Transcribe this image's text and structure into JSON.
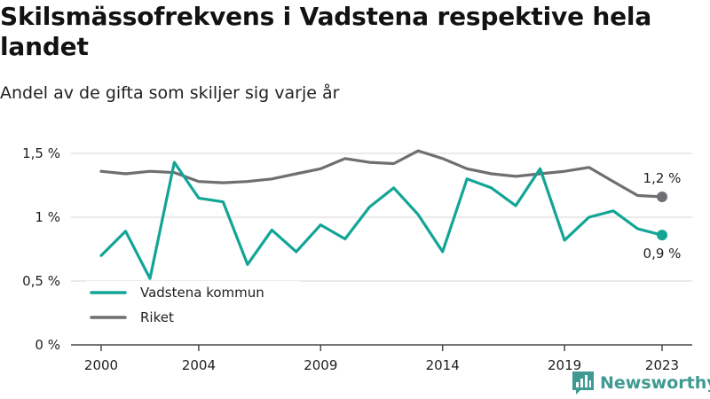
{
  "chart_data": {
    "type": "line",
    "title": "Skilsmässofrekvens i Vadstena respektive hela landet",
    "subtitle": "Andel av de gifta som skiljer sig varje år",
    "x": [
      2000,
      2001,
      2002,
      2003,
      2004,
      2005,
      2006,
      2007,
      2008,
      2009,
      2010,
      2011,
      2012,
      2013,
      2014,
      2015,
      2016,
      2017,
      2018,
      2019,
      2020,
      2021,
      2022,
      2023
    ],
    "x_tick_values": [
      2000,
      2004,
      2009,
      2014,
      2019,
      2023
    ],
    "x_tick_labels": [
      "2000",
      "2004",
      "2009",
      "2014",
      "2019",
      "2023"
    ],
    "y_tick_values": [
      0,
      0.5,
      1,
      1.5
    ],
    "y_tick_labels": [
      "0 %",
      "0,5 %",
      "1 %",
      "1,5 %"
    ],
    "ylim": [
      0,
      1.5
    ],
    "xlim": [
      2000,
      2023
    ],
    "grid": true,
    "legend_position": "bottom-left",
    "series": [
      {
        "name": "Vadstena kommun",
        "color": "#12a596",
        "end_label": "0,9 %",
        "values": [
          0.7,
          0.89,
          0.52,
          1.43,
          1.15,
          1.12,
          0.63,
          0.9,
          0.73,
          0.94,
          0.83,
          1.08,
          1.23,
          1.02,
          0.73,
          1.3,
          1.23,
          1.09,
          1.38,
          0.82,
          1.0,
          1.05,
          0.91,
          0.86
        ]
      },
      {
        "name": "Riket",
        "color": "#6f6e72",
        "end_label": "1,2 %",
        "values": [
          1.36,
          1.34,
          1.36,
          1.35,
          1.28,
          1.27,
          1.28,
          1.3,
          1.34,
          1.38,
          1.46,
          1.43,
          1.42,
          1.52,
          1.46,
          1.38,
          1.34,
          1.32,
          1.34,
          1.36,
          1.39,
          1.28,
          1.17,
          1.16
        ]
      }
    ]
  },
  "brand": {
    "name": "Newsworthy",
    "icon": "bar-chart-logo-icon",
    "color": "#3f9a91"
  }
}
